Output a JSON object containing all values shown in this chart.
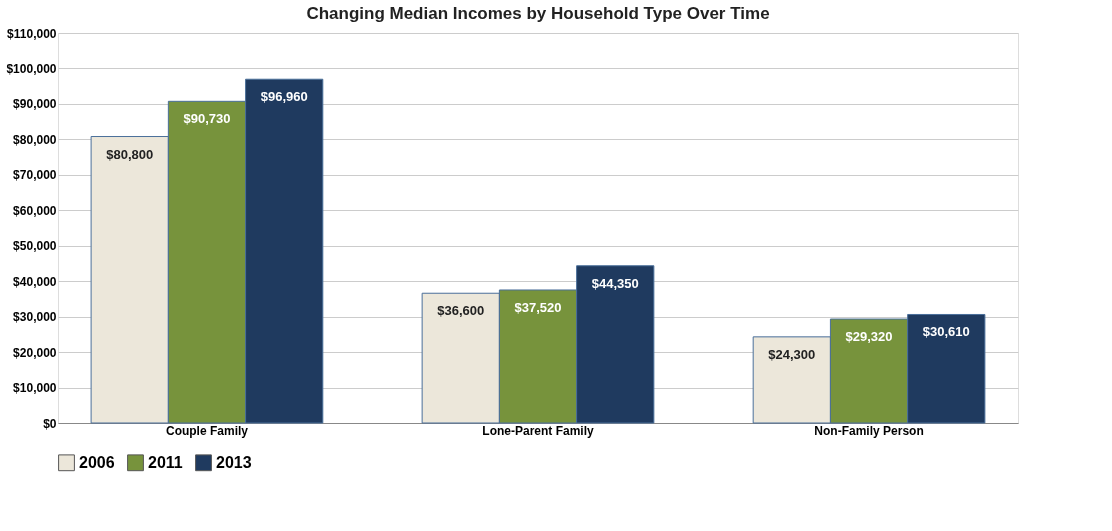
{
  "chart_data": {
    "type": "bar",
    "title": "Changing Median Incomes by Household Type Over Time",
    "categories": [
      "Couple Family",
      "Lone-Parent Family",
      "Non-Family Person"
    ],
    "series": [
      {
        "name": "2006",
        "color": "#ece7da",
        "values": [
          80800,
          36600,
          24300
        ],
        "value_labels": [
          "$80,800",
          "$36,600",
          "$24,300"
        ]
      },
      {
        "name": "2011",
        "color": "#77933c",
        "values": [
          90730,
          37520,
          29320
        ],
        "value_labels": [
          "$90,730",
          "$37,520",
          "$29,320"
        ]
      },
      {
        "name": "2013",
        "color": "#1f3a5f",
        "values": [
          96960,
          44350,
          30610
        ],
        "value_labels": [
          "$96,960",
          "$44,350",
          "$30,610"
        ]
      }
    ],
    "ylim": [
      0,
      110000
    ],
    "yticks": [
      {
        "value": 0,
        "label": "$0"
      },
      {
        "value": 10000,
        "label": "$10,000"
      },
      {
        "value": 20000,
        "label": "$20,000"
      },
      {
        "value": 30000,
        "label": "$30,000"
      },
      {
        "value": 40000,
        "label": "$40,000"
      },
      {
        "value": 50000,
        "label": "$50,000"
      },
      {
        "value": 60000,
        "label": "$60,000"
      },
      {
        "value": 70000,
        "label": "$70,000"
      },
      {
        "value": 80000,
        "label": "$80,000"
      },
      {
        "value": 90000,
        "label": "$90,000"
      },
      {
        "value": 100000,
        "label": "$100,000"
      },
      {
        "value": 110000,
        "label": "$110,000"
      }
    ],
    "grid": "y",
    "legend": "bottom"
  }
}
